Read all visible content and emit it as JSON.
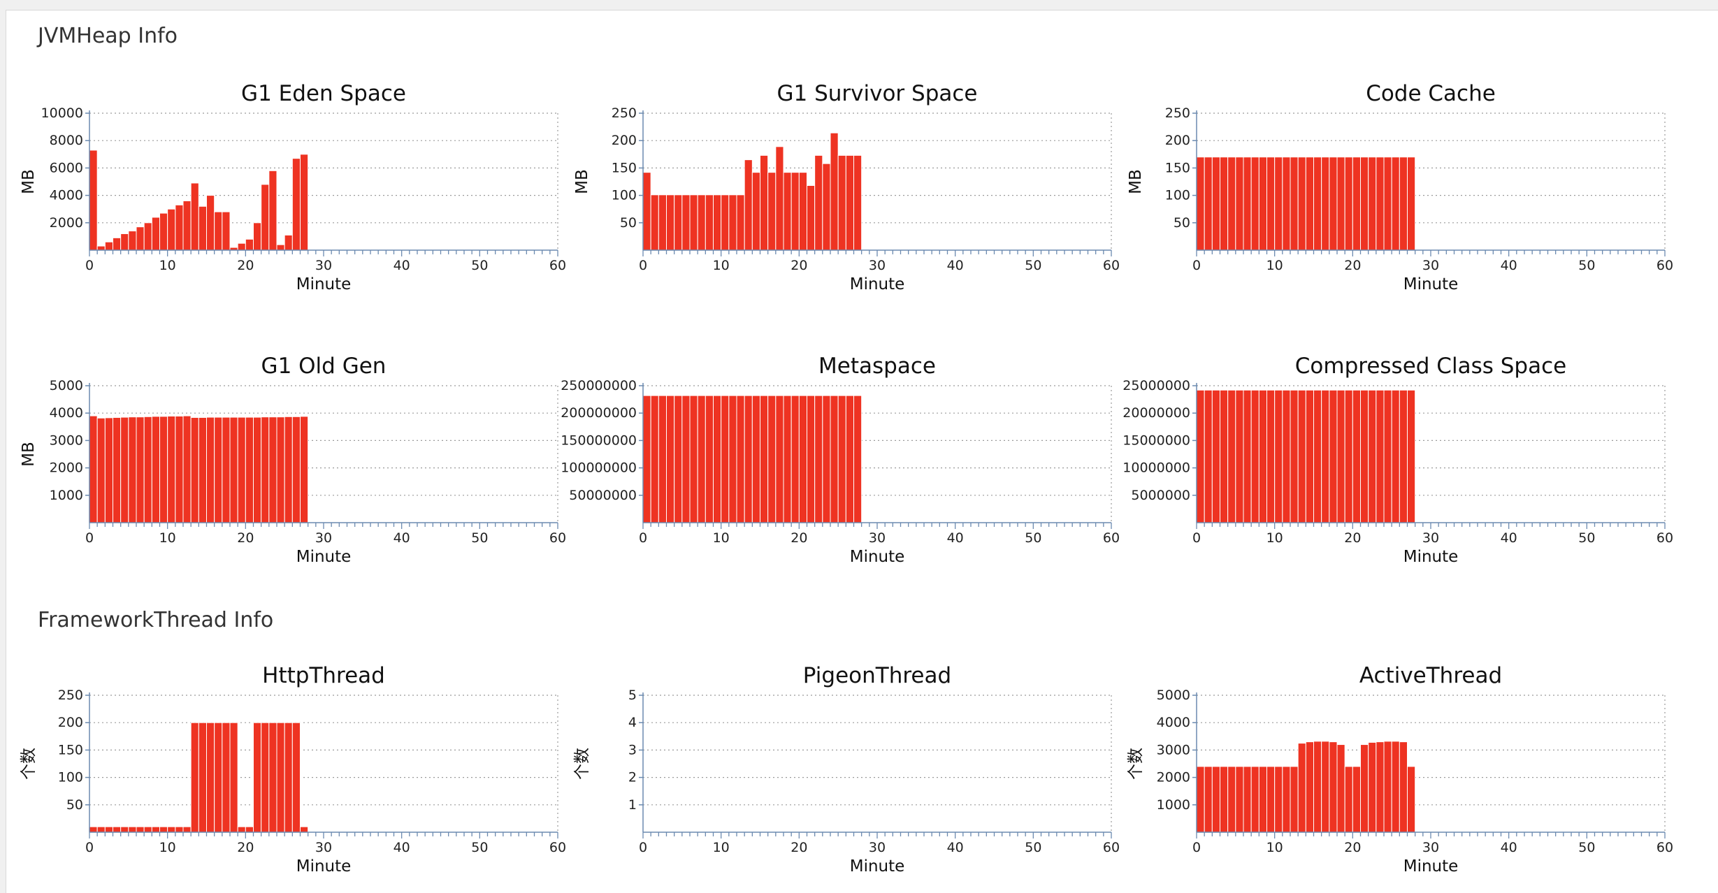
{
  "sections": {
    "jvm_title": "JVMHeap Info",
    "thread_title": "FrameworkThread Info"
  },
  "colors": {
    "bar": "#ee3322",
    "bar_edge": "#ffffff",
    "axis": "#6b8ab0",
    "grid": "#9a9a9a"
  },
  "chart_data": [
    {
      "type": "bar",
      "title": "G1 Eden Space",
      "xlabel": "Minute",
      "ylabel": "MB",
      "xlim": [
        0,
        60
      ],
      "ylim": [
        0,
        10000
      ],
      "yticks": [
        "2000",
        "4000",
        "6000",
        "8000",
        "10000"
      ],
      "xticks": [
        "0",
        "10",
        "20",
        "30",
        "40",
        "50",
        "60"
      ],
      "x": [
        0,
        1,
        2,
        3,
        4,
        5,
        6,
        7,
        8,
        9,
        10,
        11,
        12,
        13,
        14,
        15,
        16,
        17,
        18,
        19,
        20,
        21,
        22,
        23,
        24,
        25,
        26,
        27
      ],
      "values": [
        7300,
        300,
        600,
        900,
        1200,
        1400,
        1700,
        2000,
        2400,
        2700,
        3000,
        3300,
        3600,
        4900,
        3200,
        4000,
        2800,
        2800,
        200,
        500,
        800,
        2000,
        4800,
        5800,
        400,
        1100,
        6700,
        7000
      ]
    },
    {
      "type": "bar",
      "title": "G1 Survivor Space",
      "xlabel": "Minute",
      "ylabel": "MB",
      "xlim": [
        0,
        60
      ],
      "ylim": [
        0,
        250
      ],
      "yticks": [
        "50",
        "100",
        "150",
        "200",
        "250"
      ],
      "xticks": [
        "0",
        "10",
        "20",
        "30",
        "40",
        "50",
        "60"
      ],
      "x": [
        0,
        1,
        2,
        3,
        4,
        5,
        6,
        7,
        8,
        9,
        10,
        11,
        12,
        13,
        14,
        15,
        16,
        17,
        18,
        19,
        20,
        21,
        22,
        23,
        24,
        25,
        26,
        27
      ],
      "values": [
        142,
        101,
        101,
        101,
        101,
        101,
        101,
        101,
        101,
        101,
        101,
        101,
        101,
        165,
        142,
        173,
        142,
        189,
        142,
        142,
        142,
        118,
        173,
        158,
        214,
        173,
        173,
        173
      ]
    },
    {
      "type": "bar",
      "title": "Code Cache",
      "xlabel": "Minute",
      "ylabel": "MB",
      "xlim": [
        0,
        60
      ],
      "ylim": [
        0,
        250
      ],
      "yticks": [
        "50",
        "100",
        "150",
        "200",
        "250"
      ],
      "xticks": [
        "0",
        "10",
        "20",
        "30",
        "40",
        "50",
        "60"
      ],
      "x": [
        0,
        1,
        2,
        3,
        4,
        5,
        6,
        7,
        8,
        9,
        10,
        11,
        12,
        13,
        14,
        15,
        16,
        17,
        18,
        19,
        20,
        21,
        22,
        23,
        24,
        25,
        26,
        27
      ],
      "values": [
        170,
        170,
        170,
        170,
        170,
        170,
        170,
        170,
        170,
        170,
        170,
        170,
        170,
        170,
        170,
        170,
        170,
        170,
        170,
        170,
        170,
        170,
        170,
        170,
        170,
        170,
        170,
        170
      ]
    },
    {
      "type": "bar",
      "title": "G1 Old Gen",
      "xlabel": "Minute",
      "ylabel": "MB",
      "xlim": [
        0,
        60
      ],
      "ylim": [
        0,
        5000
      ],
      "yticks": [
        "1000",
        "2000",
        "3000",
        "4000",
        "5000"
      ],
      "xticks": [
        "0",
        "10",
        "20",
        "30",
        "40",
        "50",
        "60"
      ],
      "x": [
        0,
        1,
        2,
        3,
        4,
        5,
        6,
        7,
        8,
        9,
        10,
        11,
        12,
        13,
        14,
        15,
        16,
        17,
        18,
        19,
        20,
        21,
        22,
        23,
        24,
        25,
        26,
        27
      ],
      "values": [
        3900,
        3820,
        3830,
        3840,
        3850,
        3860,
        3860,
        3870,
        3880,
        3880,
        3890,
        3890,
        3900,
        3840,
        3840,
        3850,
        3850,
        3850,
        3850,
        3850,
        3850,
        3850,
        3860,
        3860,
        3860,
        3870,
        3870,
        3880
      ]
    },
    {
      "type": "bar",
      "title": "Metaspace",
      "xlabel": "Minute",
      "ylabel": "",
      "xlim": [
        0,
        60
      ],
      "ylim": [
        0,
        250000000
      ],
      "yticks": [
        "50000000",
        "100000000",
        "150000000",
        "200000000",
        "250000000"
      ],
      "xticks": [
        "0",
        "10",
        "20",
        "30",
        "40",
        "50",
        "60"
      ],
      "x": [
        0,
        1,
        2,
        3,
        4,
        5,
        6,
        7,
        8,
        9,
        10,
        11,
        12,
        13,
        14,
        15,
        16,
        17,
        18,
        19,
        20,
        21,
        22,
        23,
        24,
        25,
        26,
        27
      ],
      "values": [
        232000000,
        232000000,
        232000000,
        232000000,
        232000000,
        232000000,
        232000000,
        232000000,
        232000000,
        232000000,
        232000000,
        232000000,
        232000000,
        232000000,
        232000000,
        232000000,
        232000000,
        232000000,
        232000000,
        232000000,
        232000000,
        232000000,
        232000000,
        232000000,
        232000000,
        232000000,
        232000000,
        232000000
      ]
    },
    {
      "type": "bar",
      "title": "Compressed Class Space",
      "xlabel": "Minute",
      "ylabel": "",
      "xlim": [
        0,
        60
      ],
      "ylim": [
        0,
        25000000
      ],
      "yticks": [
        "5000000",
        "10000000",
        "15000000",
        "20000000",
        "25000000"
      ],
      "xticks": [
        "0",
        "10",
        "20",
        "30",
        "40",
        "50",
        "60"
      ],
      "x": [
        0,
        1,
        2,
        3,
        4,
        5,
        6,
        7,
        8,
        9,
        10,
        11,
        12,
        13,
        14,
        15,
        16,
        17,
        18,
        19,
        20,
        21,
        22,
        23,
        24,
        25,
        26,
        27
      ],
      "values": [
        24200000,
        24200000,
        24200000,
        24200000,
        24200000,
        24200000,
        24200000,
        24200000,
        24200000,
        24200000,
        24200000,
        24200000,
        24200000,
        24200000,
        24200000,
        24200000,
        24200000,
        24200000,
        24200000,
        24200000,
        24200000,
        24200000,
        24200000,
        24200000,
        24200000,
        24200000,
        24200000,
        24200000
      ]
    },
    {
      "type": "bar",
      "title": "HttpThread",
      "xlabel": "Minute",
      "ylabel": "个数",
      "xlim": [
        0,
        60
      ],
      "ylim": [
        0,
        250
      ],
      "yticks": [
        "50",
        "100",
        "150",
        "200",
        "250"
      ],
      "xticks": [
        "0",
        "10",
        "20",
        "30",
        "40",
        "50",
        "60"
      ],
      "x": [
        0,
        1,
        2,
        3,
        4,
        5,
        6,
        7,
        8,
        9,
        10,
        11,
        12,
        13,
        14,
        15,
        16,
        17,
        18,
        19,
        20,
        21,
        22,
        23,
        24,
        25,
        26,
        27
      ],
      "values": [
        10,
        10,
        10,
        10,
        10,
        10,
        10,
        10,
        10,
        10,
        10,
        10,
        10,
        200,
        200,
        200,
        200,
        200,
        200,
        10,
        10,
        200,
        200,
        200,
        200,
        200,
        200,
        10
      ]
    },
    {
      "type": "bar",
      "title": "PigeonThread",
      "xlabel": "Minute",
      "ylabel": "个数",
      "xlim": [
        0,
        60
      ],
      "ylim": [
        0,
        5
      ],
      "yticks": [
        "1",
        "2",
        "3",
        "4",
        "5"
      ],
      "xticks": [
        "0",
        "10",
        "20",
        "30",
        "40",
        "50",
        "60"
      ],
      "x": [],
      "values": []
    },
    {
      "type": "bar",
      "title": "ActiveThread",
      "xlabel": "Minute",
      "ylabel": "个数",
      "xlim": [
        0,
        60
      ],
      "ylim": [
        0,
        5000
      ],
      "yticks": [
        "1000",
        "2000",
        "3000",
        "4000",
        "5000"
      ],
      "xticks": [
        "0",
        "10",
        "20",
        "30",
        "40",
        "50",
        "60"
      ],
      "x": [
        0,
        1,
        2,
        3,
        4,
        5,
        6,
        7,
        8,
        9,
        10,
        11,
        12,
        13,
        14,
        15,
        16,
        17,
        18,
        19,
        20,
        21,
        22,
        23,
        24,
        25,
        26,
        27
      ],
      "values": [
        2400,
        2400,
        2400,
        2400,
        2400,
        2400,
        2400,
        2400,
        2400,
        2400,
        2400,
        2400,
        2400,
        3250,
        3300,
        3320,
        3320,
        3300,
        3200,
        2400,
        2400,
        3200,
        3280,
        3300,
        3320,
        3320,
        3300,
        2400
      ]
    }
  ]
}
